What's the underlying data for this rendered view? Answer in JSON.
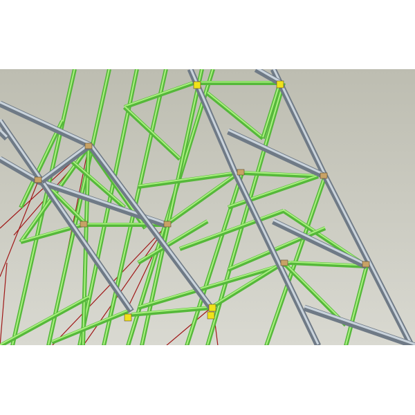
{
  "scene": {
    "background_top": "#bdbdb1",
    "background_bottom": "#d9d9d1",
    "member_colors": {
      "steel": "#6f7a86",
      "steel_highlight": "#c9d3dc",
      "brace": "#55b83a",
      "brace_highlight": "#a8ef7e",
      "cable": "#a01818",
      "node_plate": "#c8a266",
      "connector": "#f0e21a"
    }
  }
}
